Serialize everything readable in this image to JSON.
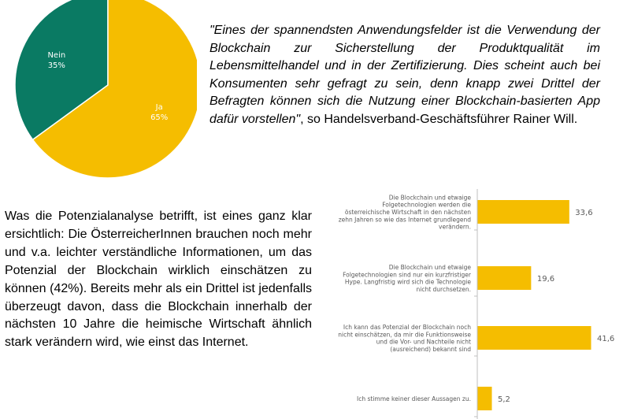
{
  "pie_chart": {
    "type": "pie",
    "slices": [
      {
        "label": "Ja",
        "value": 65,
        "value_label": "65%",
        "color": "#f5bd00"
      },
      {
        "label": "Nein",
        "value": 35,
        "value_label": "35%",
        "color": "#0a7a63"
      }
    ]
  },
  "quote": {
    "italic": "\"Eines der spannendsten Anwendungsfelder ist die Verwendung der Blockchain zur Sicherstellung der Produktqualität im Lebensmittelhandel und in der Zertifizierung. Dies scheint auch bei Konsumenten sehr gefragt zu sein, denn knapp zwei Drittel der Befragten können sich die Nutzung einer Blockchain-basierten App dafür vorstellen\"",
    "attribution": ", so Handelsverband-Geschäftsführer Rainer Will."
  },
  "body_text": "Was die Potenzialanalyse betrifft, ist eines ganz klar ersichtlich: Die ÖsterreicherInnen brauchen noch mehr und v.a. leichter verständliche Informationen, um das Potenzial der Blockchain wirklich einschätzen zu können (42%). Bereits mehr als ein Drittel ist jedenfalls überzeugt davon, dass die Blockchain innerhalb der nächsten 10 Jahre die heimische Wirtschaft ähnlich stark verändern wird, wie einst das Internet.",
  "chart_data": [
    {
      "type": "pie",
      "categories": [
        "Ja",
        "Nein"
      ],
      "values": [
        65,
        35
      ],
      "value_labels": [
        "65%",
        "35%"
      ]
    },
    {
      "type": "bar",
      "orientation": "horizontal",
      "categories": [
        [
          "Die Blockchain und etwaige",
          "Folgetechnologien werden die",
          "österreichische Wirtschaft in den nächsten",
          "zehn Jahren so wie das Internet grundlegend",
          "verändern."
        ],
        [
          "Die Blockchain und etwaige",
          "Folgetechnologien sind nur ein kurzfristiger",
          "Hype. Langfristig wird sich die Technologie",
          "nicht durchsetzen."
        ],
        [
          "Ich kann das Potenzial der Blockchain noch",
          "nicht einschätzen, da mir die Funktionsweise",
          "und die Vor- und Nachteile nicht",
          "(ausreichend) bekannt sind"
        ],
        [
          "Ich stimme keiner dieser Aussagen zu."
        ]
      ],
      "values": [
        33.6,
        19.6,
        41.6,
        5.2
      ],
      "value_labels": [
        "33,6",
        "19,6",
        "41,6",
        "5,2"
      ],
      "xlim": [
        0,
        45
      ],
      "grid": false,
      "bar_color": "#f5bd00"
    }
  ]
}
